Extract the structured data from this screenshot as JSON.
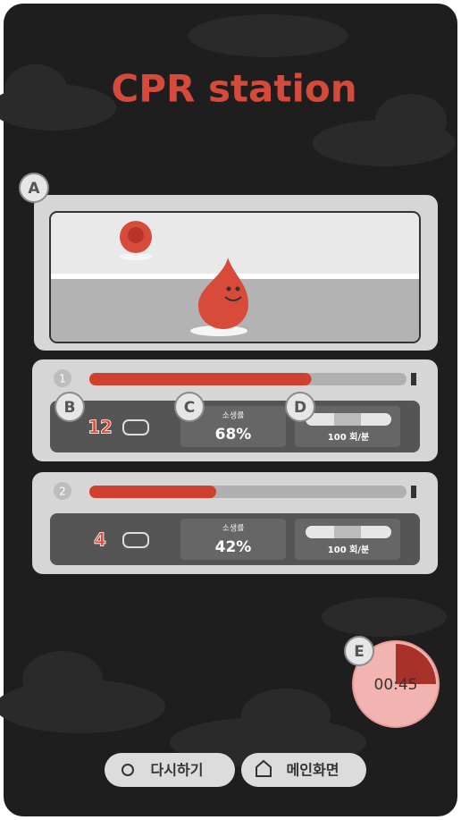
{
  "title": "CPR station",
  "callouts": [
    "A",
    "B",
    "C",
    "D",
    "E"
  ],
  "players": [
    {
      "number": "1",
      "count": "12",
      "rate_label": "소생률",
      "rate": "68%",
      "tempo": "100 회/분",
      "progress": 0.7
    },
    {
      "number": "2",
      "count": "4",
      "rate_label": "소생률",
      "rate": "42%",
      "tempo": "100 회/분",
      "progress": 0.4
    }
  ],
  "timer": "00:45",
  "buttons": [
    "다시하기",
    "메인화면"
  ]
}
